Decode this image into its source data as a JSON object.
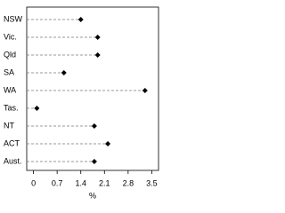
{
  "chart_data": {
    "type": "dot",
    "x_label": "%",
    "categories": [
      "NSW",
      "Vic.",
      "Qld",
      "SA",
      "WA",
      "Tas.",
      "NT",
      "ACT",
      "Aust."
    ],
    "values": [
      1.4,
      1.9,
      1.9,
      0.9,
      3.3,
      0.1,
      1.8,
      2.2,
      1.8
    ],
    "color": "#000000",
    "xlim": [
      -0.2,
      3.7
    ],
    "xticks": [
      0,
      0.7,
      1.4,
      2.1,
      2.8,
      3.5
    ]
  }
}
